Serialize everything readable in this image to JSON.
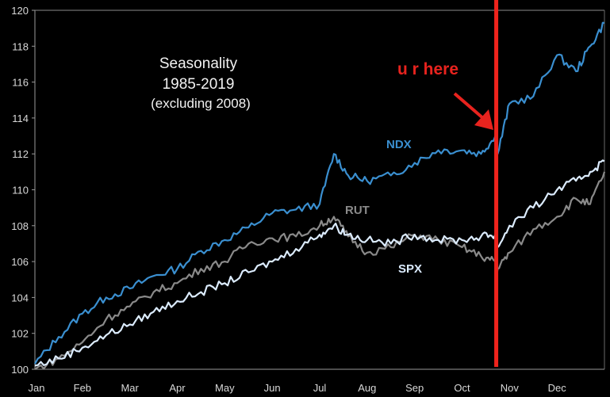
{
  "chart_data": {
    "type": "line",
    "title": "Seasonality",
    "subtitle": "1985-2019",
    "note": "(excluding 2008)",
    "xlabel": "",
    "ylabel": "",
    "ylim": [
      100,
      120
    ],
    "xlim_months": [
      0,
      12
    ],
    "yticks": [
      "100",
      "102",
      "104",
      "106",
      "108",
      "110",
      "112",
      "114",
      "116",
      "118",
      "120"
    ],
    "xticks": [
      "Jan",
      "Feb",
      "Mar",
      "Apr",
      "May",
      "Jun",
      "Jul",
      "Aug",
      "Sep",
      "Oct",
      "Nov",
      "Dec"
    ],
    "grid": false,
    "x": [
      0,
      0.5,
      1,
      1.5,
      2,
      2.5,
      3,
      3.5,
      4,
      4.5,
      5,
      5.5,
      6,
      6.3,
      6.6,
      7,
      7.5,
      8,
      8.5,
      9,
      9.4,
      9.7,
      9.75,
      10,
      10.5,
      11,
      11.4,
      11.7,
      12
    ],
    "series": [
      {
        "name": "NDX",
        "color": "#3a8fd0",
        "values": [
          100.3,
          101.8,
          103.1,
          104.0,
          104.5,
          105.2,
          105.6,
          106.6,
          107.2,
          107.9,
          108.7,
          108.9,
          109.2,
          112.0,
          110.8,
          110.5,
          110.8,
          111.5,
          112.2,
          112.2,
          112.0,
          113.0,
          112.0,
          114.8,
          115.2,
          117.5,
          116.6,
          118.0,
          119.3
        ]
      },
      {
        "name": "RUT",
        "color": "#8a8a8a",
        "values": [
          100.0,
          100.6,
          101.5,
          102.8,
          103.5,
          104.3,
          104.8,
          105.6,
          106.0,
          107.0,
          107.3,
          107.4,
          108.0,
          108.5,
          107.4,
          106.5,
          106.8,
          107.5,
          107.2,
          106.8,
          106.3,
          106.0,
          105.6,
          106.5,
          107.8,
          108.5,
          109.5,
          109.2,
          111.0
        ]
      },
      {
        "name": "SPX",
        "color": "#dcecff",
        "values": [
          100.2,
          100.6,
          101.2,
          101.9,
          102.5,
          103.2,
          103.8,
          104.3,
          104.8,
          105.4,
          106.0,
          106.7,
          107.5,
          108.0,
          107.5,
          107.2,
          107.0,
          107.5,
          107.2,
          107.2,
          107.4,
          107.5,
          106.8,
          108.0,
          109.0,
          110.0,
          110.5,
          111.0,
          111.6
        ]
      }
    ],
    "annotations": [
      {
        "text": "u r here",
        "color": "#e8231e",
        "marker_month": 9.72
      }
    ]
  }
}
